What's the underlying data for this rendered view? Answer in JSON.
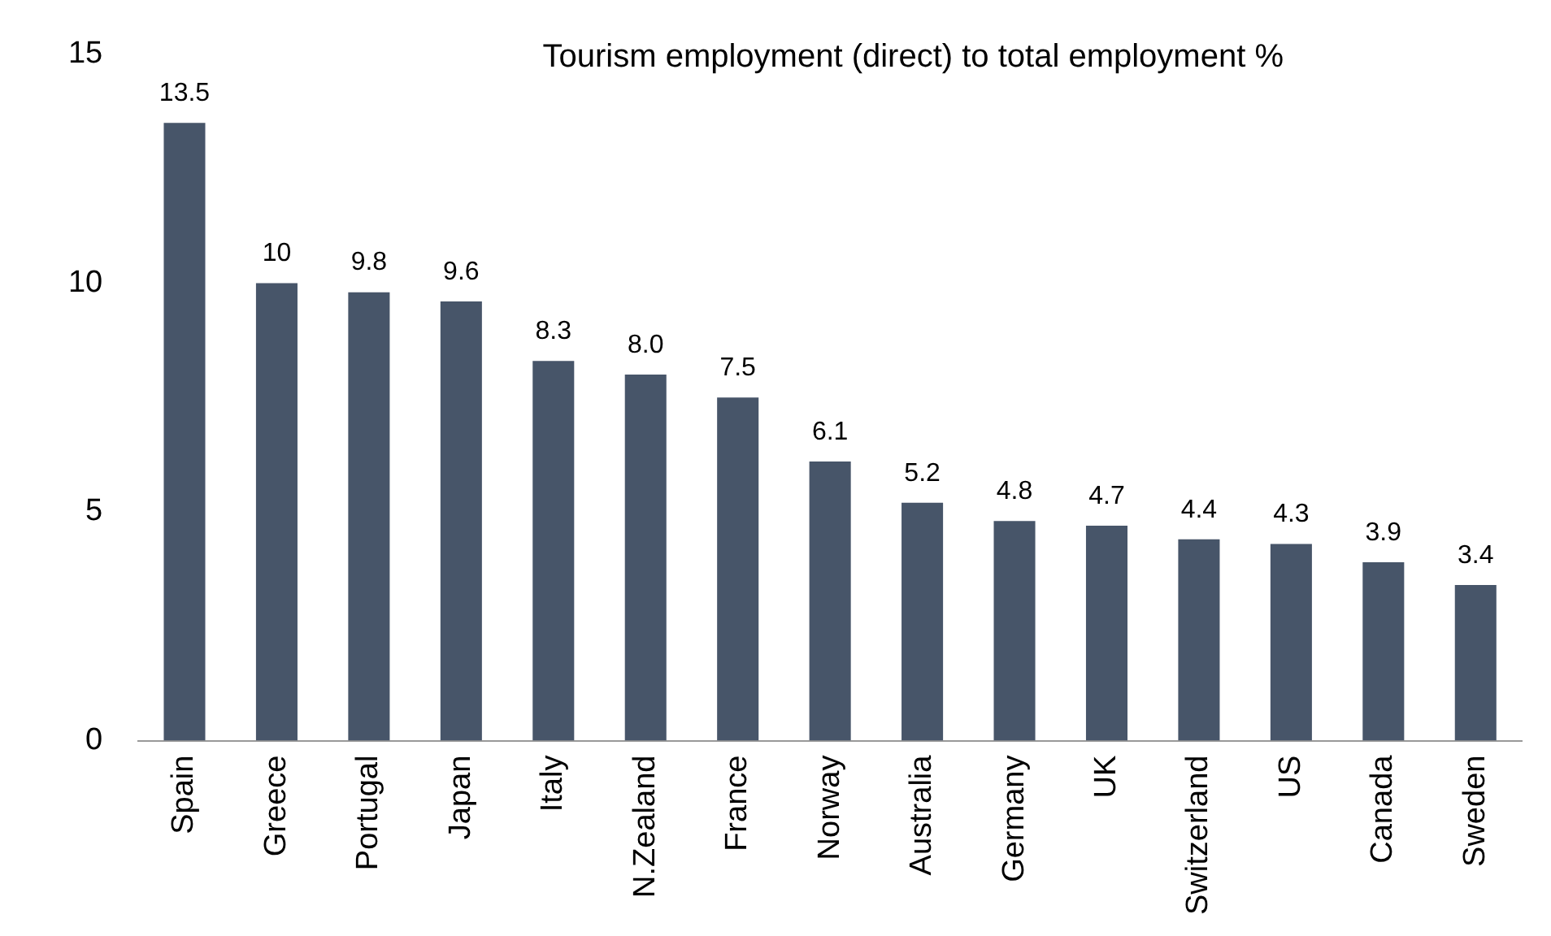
{
  "chart_data": {
    "type": "bar",
    "title": "Tourism employment (direct) to total employment %",
    "categories": [
      "Spain",
      "Greece",
      "Portugal",
      "Japan",
      "Italy",
      "N.Zealand",
      "France",
      "Norway",
      "Australia",
      "Germany",
      "UK",
      "Switzerland",
      "US",
      "Canada",
      "Sweden"
    ],
    "values": [
      13.5,
      10,
      9.8,
      9.6,
      8.3,
      8.0,
      7.5,
      6.1,
      5.2,
      4.8,
      4.7,
      4.4,
      4.3,
      3.9,
      3.4
    ],
    "value_labels": [
      "13.5",
      "10",
      "9.8",
      "9.6",
      "8.3",
      "8.0",
      "7.5",
      "6.1",
      "5.2",
      "4.8",
      "4.7",
      "4.4",
      "4.3",
      "3.9",
      "3.4"
    ],
    "color": "#475569",
    "ylim": [
      0,
      15
    ],
    "yticks": [
      0,
      5,
      10,
      15
    ],
    "grid": false,
    "legend": false
  }
}
